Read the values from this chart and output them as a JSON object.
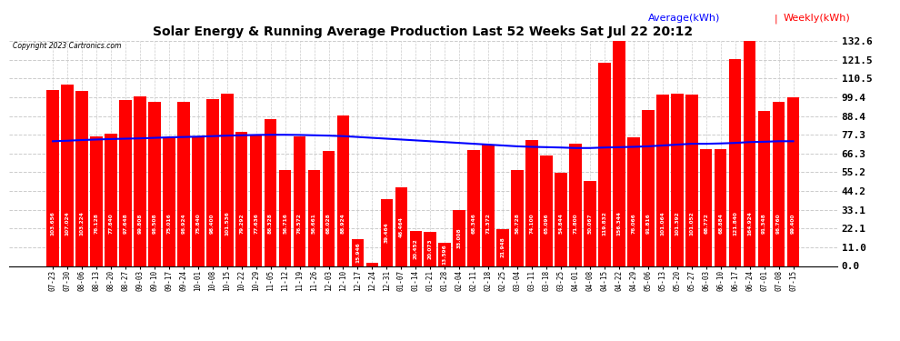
{
  "title": "Solar Energy & Running Average Production Last 52 Weeks Sat Jul 22 20:12",
  "copyright": "Copyright 2023 Cartronics.com",
  "legend_avg": "Average(kWh)",
  "legend_weekly": "Weekly(kWh)",
  "bar_color": "#ff0000",
  "avg_line_color": "#0000ff",
  "background_color": "#ffffff",
  "grid_color": "#cccccc",
  "yticks": [
    0.0,
    11.0,
    22.1,
    33.1,
    44.2,
    55.2,
    66.3,
    77.3,
    88.4,
    99.4,
    110.5,
    121.5,
    132.6
  ],
  "ylim": [
    0.0,
    132.6
  ],
  "dates": [
    "07-23",
    "07-30",
    "08-06",
    "08-13",
    "08-20",
    "08-27",
    "09-03",
    "09-10",
    "09-17",
    "09-24",
    "10-01",
    "10-08",
    "10-15",
    "10-22",
    "10-29",
    "11-05",
    "11-12",
    "11-19",
    "11-26",
    "12-03",
    "12-10",
    "12-17",
    "12-24",
    "12-31",
    "01-07",
    "01-14",
    "01-21",
    "01-28",
    "02-04",
    "02-11",
    "02-18",
    "02-25",
    "03-04",
    "03-11",
    "03-18",
    "03-25",
    "04-01",
    "04-08",
    "04-15",
    "04-22",
    "04-29",
    "05-06",
    "05-13",
    "05-20",
    "05-27",
    "06-03",
    "06-10",
    "06-17",
    "06-24",
    "07-01",
    "07-08",
    "07-15"
  ],
  "weekly_values": [
    103.656,
    107.024,
    103.224,
    76.128,
    77.84,
    97.648,
    99.808,
    96.508,
    75.016,
    96.924,
    75.84,
    98.4,
    101.536,
    79.292,
    77.636,
    86.328,
    56.716,
    76.572,
    56.661,
    68.028,
    88.924,
    15.946,
    1.928,
    39.464,
    46.464,
    20.452,
    20.073,
    13.596,
    33.008,
    68.346,
    71.372,
    21.948,
    56.728,
    74.1,
    65.096,
    54.844,
    71.8,
    50.067,
    119.832,
    156.344,
    76.066,
    91.816,
    101.064,
    101.392,
    101.052,
    68.772,
    68.884,
    121.84,
    164.924,
    91.348,
    96.76,
    99.4
  ],
  "avg_values": [
    73.5,
    73.8,
    74.2,
    74.5,
    74.8,
    75.0,
    75.2,
    75.5,
    75.8,
    76.0,
    76.2,
    76.5,
    76.8,
    77.0,
    77.2,
    77.3,
    77.3,
    77.2,
    77.0,
    76.8,
    76.5,
    76.0,
    75.5,
    75.0,
    74.5,
    74.0,
    73.5,
    73.0,
    72.5,
    72.0,
    71.5,
    71.0,
    70.5,
    70.2,
    70.0,
    69.8,
    69.5,
    69.5,
    69.8,
    70.0,
    70.2,
    70.5,
    71.0,
    71.5,
    72.0,
    72.0,
    72.2,
    72.5,
    73.0,
    73.2,
    73.5,
    73.5
  ]
}
